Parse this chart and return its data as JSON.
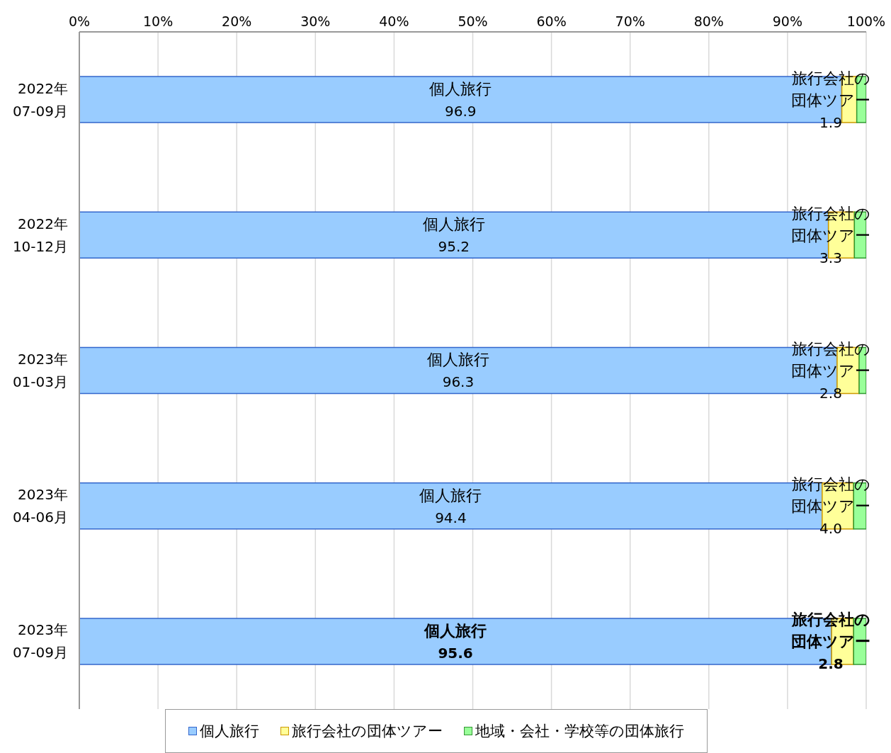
{
  "chart_data": {
    "type": "bar",
    "orientation": "horizontal",
    "stacked": true,
    "categories": [
      "2022年\n07-09月",
      "2022年\n10-12月",
      "2023年\n01-03月",
      "2023年\n04-06月",
      "2023年\n07-09月"
    ],
    "series": [
      {
        "name": "個人旅行",
        "color": "#99ccff",
        "values": [
          96.9,
          95.2,
          96.3,
          94.4,
          95.6
        ],
        "value_labels": [
          "96.9",
          "95.2",
          "96.3",
          "94.4",
          "95.6"
        ]
      },
      {
        "name": "旅行会社の団体ツアー",
        "color": "#ffff99",
        "values": [
          1.9,
          3.3,
          2.8,
          4.0,
          2.8
        ],
        "value_labels": [
          "1.9",
          "3.3",
          "2.8",
          "4.0",
          "2.8"
        ]
      },
      {
        "name": "地域・会社・学校等の団体旅行",
        "color": "#99ff99",
        "values": [
          1.2,
          1.5,
          0.9,
          1.6,
          1.6
        ]
      }
    ],
    "xlim": [
      0,
      100
    ],
    "xticks": [
      {
        "value": 0,
        "label": "0%"
      },
      {
        "value": 10,
        "label": "10%"
      },
      {
        "value": 20,
        "label": "20%"
      },
      {
        "value": 30,
        "label": "30%"
      },
      {
        "value": 40,
        "label": "40%"
      },
      {
        "value": 50,
        "label": "50%"
      },
      {
        "value": 60,
        "label": "60%"
      },
      {
        "value": 70,
        "label": "70%"
      },
      {
        "value": 80,
        "label": "80%"
      },
      {
        "value": 90,
        "label": "90%"
      },
      {
        "value": 100,
        "label": "100%"
      }
    ],
    "grid": "x",
    "legend": "bottom"
  }
}
